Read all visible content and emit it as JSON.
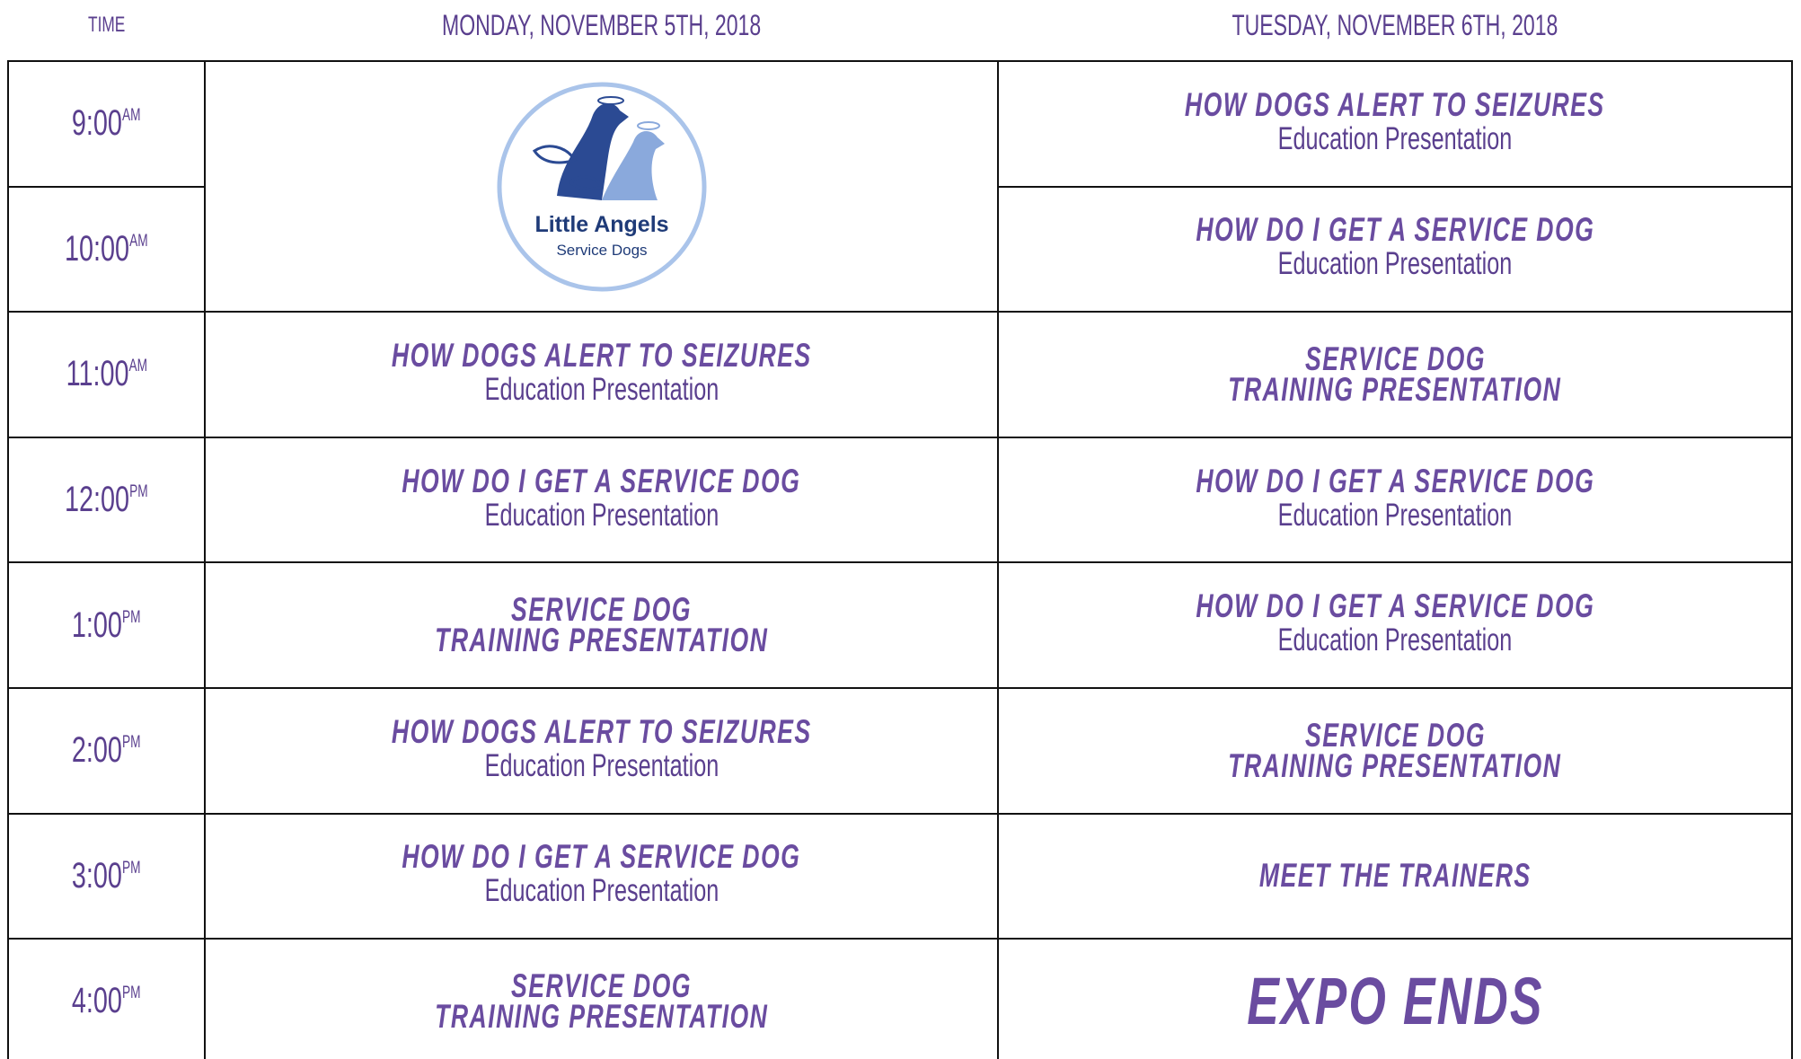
{
  "header": {
    "time": "TIME",
    "days": [
      "MONDAY, NOVEMBER 5TH, 2018",
      "TUESDAY, NOVEMBER 6TH, 2018"
    ]
  },
  "logo": {
    "name": "Little Angels",
    "tagline": "Service Dogs"
  },
  "rows": [
    {
      "time": "9:00",
      "period": "AM"
    },
    {
      "time": "10:00",
      "period": "AM"
    },
    {
      "time": "11:00",
      "period": "AM"
    },
    {
      "time": "12:00",
      "period": "PM"
    },
    {
      "time": "1:00",
      "period": "PM"
    },
    {
      "time": "2:00",
      "period": "PM"
    },
    {
      "time": "3:00",
      "period": "PM"
    },
    {
      "time": "4:00",
      "period": "PM"
    }
  ],
  "monday": [
    {
      "title": [
        "HOW DOGS ALERT TO SEIZURES"
      ],
      "subtitle": "Education Presentation"
    },
    {
      "title": [
        "HOW DO I GET A SERVICE DOG"
      ],
      "subtitle": "Education Presentation"
    },
    {
      "title": [
        "SERVICE DOG",
        "TRAINING PRESENTATION"
      ]
    },
    {
      "title": [
        "HOW DOGS ALERT TO SEIZURES"
      ],
      "subtitle": "Education Presentation"
    },
    {
      "title": [
        "HOW DO I GET A SERVICE DOG"
      ],
      "subtitle": "Education Presentation"
    },
    {
      "title": [
        "SERVICE DOG",
        "TRAINING PRESENTATION"
      ]
    }
  ],
  "tuesday": [
    {
      "title": [
        "HOW DOGS ALERT TO SEIZURES"
      ],
      "subtitle": "Education Presentation"
    },
    {
      "title": [
        "HOW DO I GET A SERVICE DOG"
      ],
      "subtitle": "Education Presentation"
    },
    {
      "title": [
        "SERVICE DOG",
        "TRAINING PRESENTATION"
      ]
    },
    {
      "title": [
        "HOW DO I GET A SERVICE DOG"
      ],
      "subtitle": "Education Presentation"
    },
    {
      "title": [
        "HOW DO I GET A SERVICE DOG"
      ],
      "subtitle": "Education Presentation"
    },
    {
      "title": [
        "SERVICE DOG",
        "TRAINING PRESENTATION"
      ]
    },
    {
      "title": [
        "MEET THE TRAINERS"
      ]
    },
    {
      "title": [
        "EXPO ENDS"
      ]
    }
  ]
}
